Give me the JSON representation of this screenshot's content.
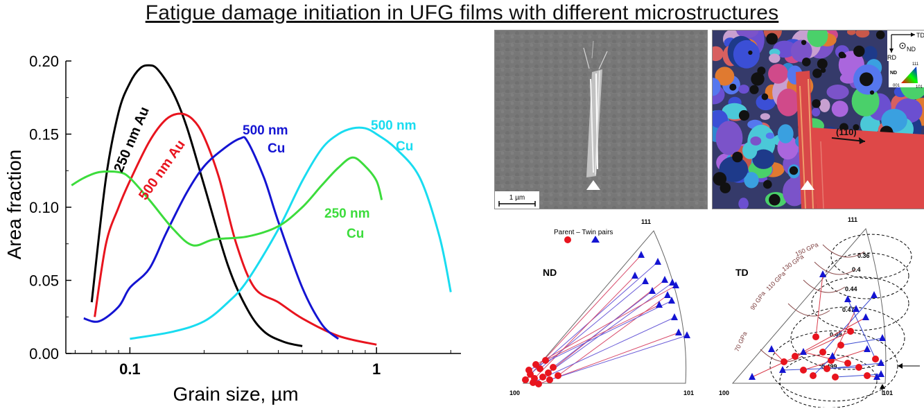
{
  "figure": {
    "title": "Fatigue damage initiation in UFG films with different microstructures"
  },
  "chart_data": {
    "type": "line",
    "xlabel": "Grain size, µm",
    "ylabel": "Area fraction",
    "x_scale": "log",
    "xlim": [
      0.055,
      2.2
    ],
    "ylim": [
      0,
      0.2
    ],
    "x_ticks": [
      0.1,
      1
    ],
    "x_tick_labels": [
      "0.1",
      "1"
    ],
    "y_ticks": [
      0.0,
      0.05,
      0.1,
      0.15,
      0.2
    ],
    "y_tick_labels": [
      "0.00",
      "0.05",
      "0.10",
      "0.15",
      "0.20"
    ],
    "series": [
      {
        "name": "250 nm Au",
        "color": "#000000",
        "x": [
          0.07,
          0.08,
          0.09,
          0.1,
          0.11,
          0.12,
          0.13,
          0.15,
          0.17,
          0.2,
          0.25,
          0.3,
          0.35,
          0.42,
          0.5
        ],
        "y": [
          0.035,
          0.12,
          0.165,
          0.185,
          0.195,
          0.197,
          0.194,
          0.178,
          0.155,
          0.115,
          0.06,
          0.03,
          0.015,
          0.008,
          0.005
        ]
      },
      {
        "name": "500 nm Au",
        "color": "#e8141e",
        "x": [
          0.072,
          0.08,
          0.09,
          0.1,
          0.12,
          0.14,
          0.16,
          0.18,
          0.2,
          0.23,
          0.27,
          0.32,
          0.4,
          0.5,
          0.7,
          1.0
        ],
        "y": [
          0.025,
          0.075,
          0.1,
          0.118,
          0.145,
          0.16,
          0.164,
          0.16,
          0.148,
          0.12,
          0.075,
          0.045,
          0.035,
          0.024,
          0.012,
          0.006
        ]
      },
      {
        "name": "500 nm Cu",
        "color": "#1414d2",
        "x": [
          0.065,
          0.075,
          0.09,
          0.1,
          0.12,
          0.14,
          0.17,
          0.2,
          0.24,
          0.28,
          0.3,
          0.35,
          0.4,
          0.5,
          0.6,
          0.7
        ],
        "y": [
          0.024,
          0.022,
          0.032,
          0.045,
          0.058,
          0.082,
          0.11,
          0.128,
          0.14,
          0.147,
          0.145,
          0.12,
          0.09,
          0.045,
          0.02,
          0.01
        ]
      },
      {
        "name": "500 nm Cu",
        "color": "#19dcf0",
        "x": [
          0.1,
          0.15,
          0.2,
          0.25,
          0.3,
          0.4,
          0.5,
          0.6,
          0.7,
          0.8,
          0.9,
          1.0,
          1.2,
          1.5,
          1.8,
          2.0
        ],
        "y": [
          0.01,
          0.015,
          0.022,
          0.035,
          0.05,
          0.085,
          0.118,
          0.14,
          0.15,
          0.154,
          0.154,
          0.15,
          0.14,
          0.12,
          0.08,
          0.042
        ]
      },
      {
        "name": "250 nm Cu",
        "color": "#3cdc3c",
        "x": [
          0.058,
          0.065,
          0.075,
          0.09,
          0.1,
          0.12,
          0.15,
          0.18,
          0.22,
          0.3,
          0.4,
          0.5,
          0.6,
          0.7,
          0.8,
          0.9,
          1.0,
          1.05
        ],
        "y": [
          0.115,
          0.12,
          0.124,
          0.124,
          0.12,
          0.105,
          0.085,
          0.074,
          0.078,
          0.08,
          0.087,
          0.1,
          0.115,
          0.127,
          0.134,
          0.128,
          0.118,
          0.105
        ]
      }
    ],
    "annotations": [
      {
        "text": "250 nm Au",
        "color": "#000000"
      },
      {
        "text": "500 nm Au",
        "color": "#e8141e"
      },
      {
        "text": "500 nm",
        "color": "#1414d2"
      },
      {
        "text": "Cu",
        "color": "#1414d2"
      },
      {
        "text": "500 nm",
        "color": "#19dcf0"
      },
      {
        "text": "Cu",
        "color": "#19dcf0"
      },
      {
        "text": "250 nm",
        "color": "#3cdc3c"
      },
      {
        "text": "Cu",
        "color": "#3cdc3c"
      }
    ]
  },
  "sem": {
    "scalebar_label": "1 µm"
  },
  "ebsd": {
    "axes": {
      "td": "TD",
      "rd": "RD",
      "nd": "ND"
    },
    "key": {
      "label": "ND",
      "c111": "111",
      "c001": "001",
      "c101": "101"
    },
    "direction_label": "(110)"
  },
  "ipf_nd": {
    "label": "ND",
    "legend_text": "Parent – Twin pairs",
    "corner_111": "111",
    "corner_100": "100",
    "corner_101": "101"
  },
  "ipf_td": {
    "label": "TD",
    "corner_111": "111",
    "corner_100": "100",
    "corner_101": "101",
    "modulus_labels": [
      "150 GPa",
      "130 GPa",
      "110 GPa",
      "90 GPa",
      "70 GPa"
    ],
    "contour_labels": [
      "0.36",
      "0.4",
      "0.44",
      "0.47",
      "0.49",
      "0.499"
    ]
  }
}
